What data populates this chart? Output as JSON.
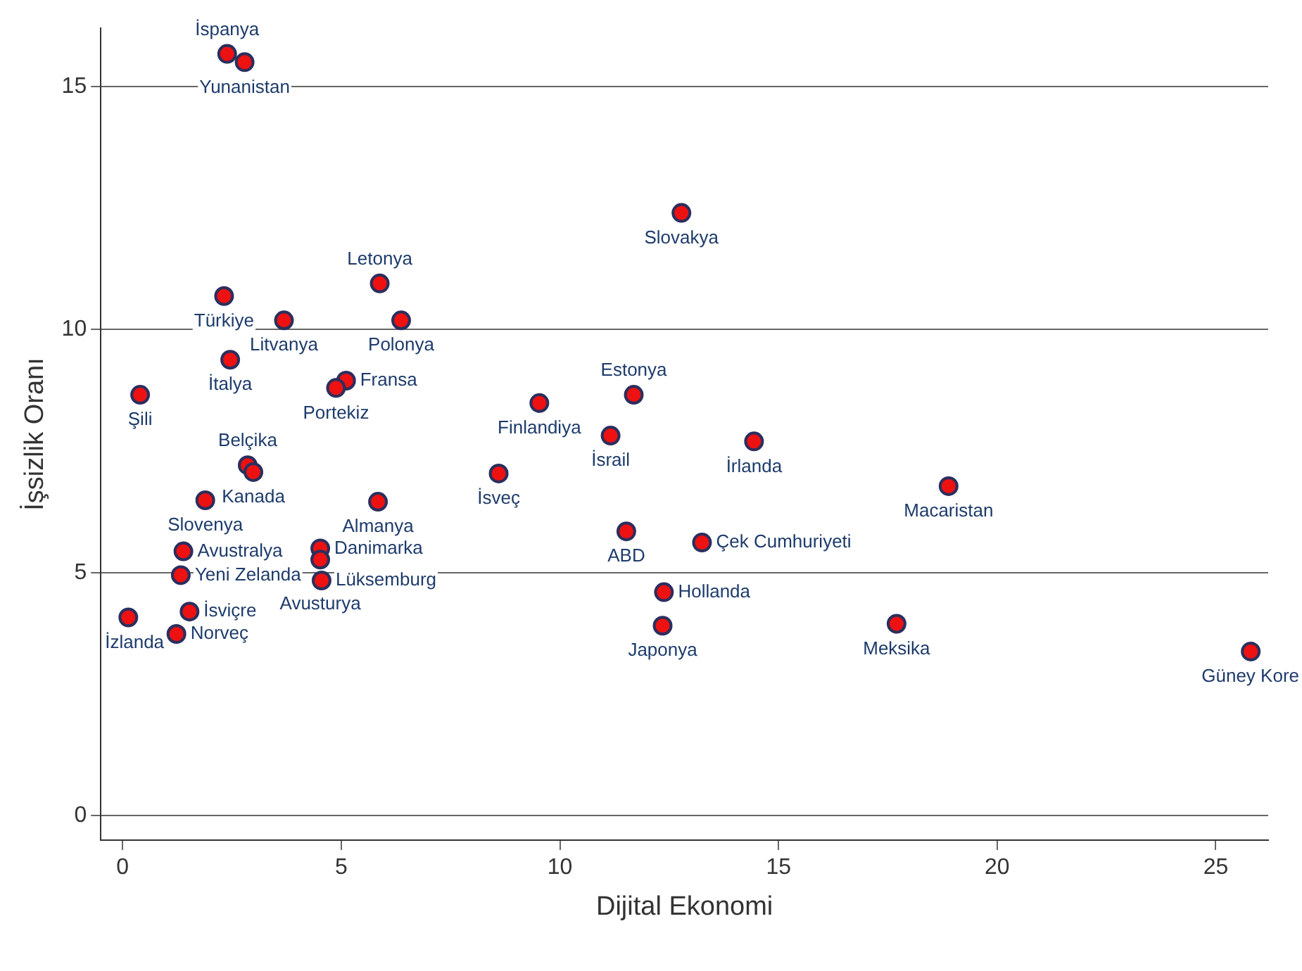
{
  "chart_data": {
    "type": "scatter",
    "xlabel": "Dijital Ekonomi",
    "ylabel": "İşsizlik Oranı",
    "xlim": [
      -0.5,
      26.2
    ],
    "ylim": [
      -0.5,
      16.2
    ],
    "xticks": [
      0,
      5,
      10,
      15,
      20,
      25
    ],
    "yticks": [
      0,
      5,
      10,
      15
    ],
    "grid": "y",
    "marker": "circle",
    "legend": false,
    "series": [
      {
        "color": "#ee1111",
        "x": [
          2.39,
          2.79,
          12.78,
          5.88,
          6.37,
          2.32,
          3.69,
          2.46,
          0.4,
          5.11,
          4.88,
          9.53,
          11.69,
          11.16,
          14.44,
          18.89,
          8.6,
          2.86,
          2.99,
          1.89,
          5.84,
          11.52,
          13.25,
          1.39,
          1.33,
          1.53,
          0.13,
          1.23,
          4.52,
          4.52,
          4.55,
          12.38,
          12.35,
          17.7,
          25.8
        ],
        "values": [
          15.67,
          15.5,
          12.4,
          10.95,
          10.19,
          10.69,
          10.19,
          9.38,
          8.66,
          8.95,
          8.8,
          8.49,
          8.66,
          7.82,
          7.7,
          6.78,
          7.04,
          7.21,
          7.07,
          6.49,
          6.46,
          5.85,
          5.62,
          5.44,
          4.95,
          4.2,
          4.08,
          3.74,
          5.5,
          5.27,
          4.84,
          4.6,
          3.91,
          3.95,
          3.38
        ],
        "value_labels": [
          "İspanya",
          "Yunanistan",
          "Slovakya",
          "Letonya",
          "Polonya",
          "Türkiye",
          "Litvanya",
          "İtalya",
          "Şili",
          "Fransa",
          "Portekiz",
          "Finlandiya",
          "Estonya",
          "İsrail",
          "İrlanda",
          "Macaristan",
          "İsveç",
          "Belçika",
          "Kanada",
          "Slovenya",
          "Almanya",
          "ABD",
          "Çek Cumhuriyeti",
          "Avustralya",
          "Yeni Zelanda",
          "İsviçre",
          "İzlanda",
          "Norveç",
          "Danimarka",
          "Avusturya",
          "Lüksemburg",
          "Hollanda",
          "Japonya",
          "Meksika",
          "Güney Kore"
        ]
      }
    ]
  }
}
